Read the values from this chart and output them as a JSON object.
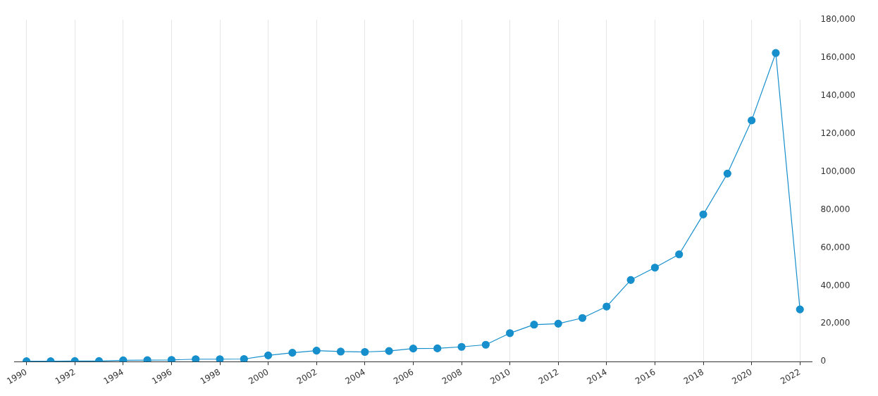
{
  "chart_data": {
    "type": "line",
    "x": [
      1990,
      1991,
      1992,
      1993,
      1994,
      1995,
      1996,
      1997,
      1998,
      1999,
      2000,
      2001,
      2002,
      2003,
      2004,
      2005,
      2006,
      2007,
      2008,
      2009,
      2010,
      2011,
      2012,
      2013,
      2014,
      2015,
      2016,
      2017,
      2018,
      2019,
      2020,
      2021,
      2022
    ],
    "series": [
      {
        "color": "#168fcc",
        "values": [
          200,
          200,
          300,
          300,
          700,
          800,
          900,
          1300,
          1300,
          1400,
          3300,
          4700,
          5800,
          5300,
          5100,
          5600,
          6900,
          7000,
          7800,
          8900,
          15000,
          19500,
          20000,
          23000,
          29000,
          43000,
          49500,
          56500,
          77500,
          99000,
          127000,
          162500,
          27500
        ]
      }
    ],
    "xlim": [
      1989.5,
      2022.5
    ],
    "xticks": [
      1990,
      1992,
      1994,
      1996,
      1998,
      2000,
      2002,
      2004,
      2006,
      2008,
      2010,
      2012,
      2014,
      2016,
      2018,
      2020,
      2022
    ],
    "ylim": [
      0,
      180000
    ],
    "yticks": [
      {
        "value": 0,
        "label": "0"
      },
      {
        "value": 20000,
        "label": "20,000"
      },
      {
        "value": 40000,
        "label": "40,000"
      },
      {
        "value": 60000,
        "label": "60,000"
      },
      {
        "value": 80000,
        "label": "80,000"
      },
      {
        "value": 100000,
        "label": "100,000"
      },
      {
        "value": 120000,
        "label": "120,000"
      },
      {
        "value": 140000,
        "label": "140,000"
      },
      {
        "value": 160000,
        "label": "160,000"
      },
      {
        "value": 180000,
        "label": "180,000"
      }
    ],
    "grid": "x",
    "legend": false,
    "marker": "circle",
    "line_style": "solid"
  }
}
